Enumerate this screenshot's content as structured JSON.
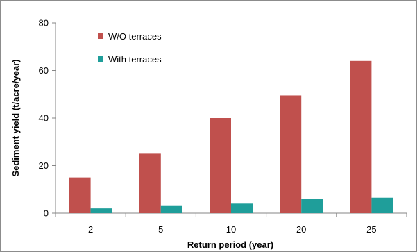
{
  "chart_data": {
    "type": "bar",
    "categories": [
      "2",
      "5",
      "10",
      "20",
      "25"
    ],
    "series": [
      {
        "name": "W/O terraces",
        "values": [
          15,
          25,
          40,
          49.5,
          64
        ],
        "color": "#c0504d"
      },
      {
        "name": "With terraces",
        "values": [
          2,
          3,
          4,
          6,
          6.5
        ],
        "color": "#1f9e9a"
      }
    ],
    "title": "",
    "xlabel": "Return period (year)",
    "ylabel": "Sediment yield (t/acre/year)",
    "ylim": [
      0,
      80
    ],
    "yticks": [
      "0",
      "20",
      "40",
      "60",
      "80"
    ],
    "grid": false,
    "legend": "top-left"
  }
}
